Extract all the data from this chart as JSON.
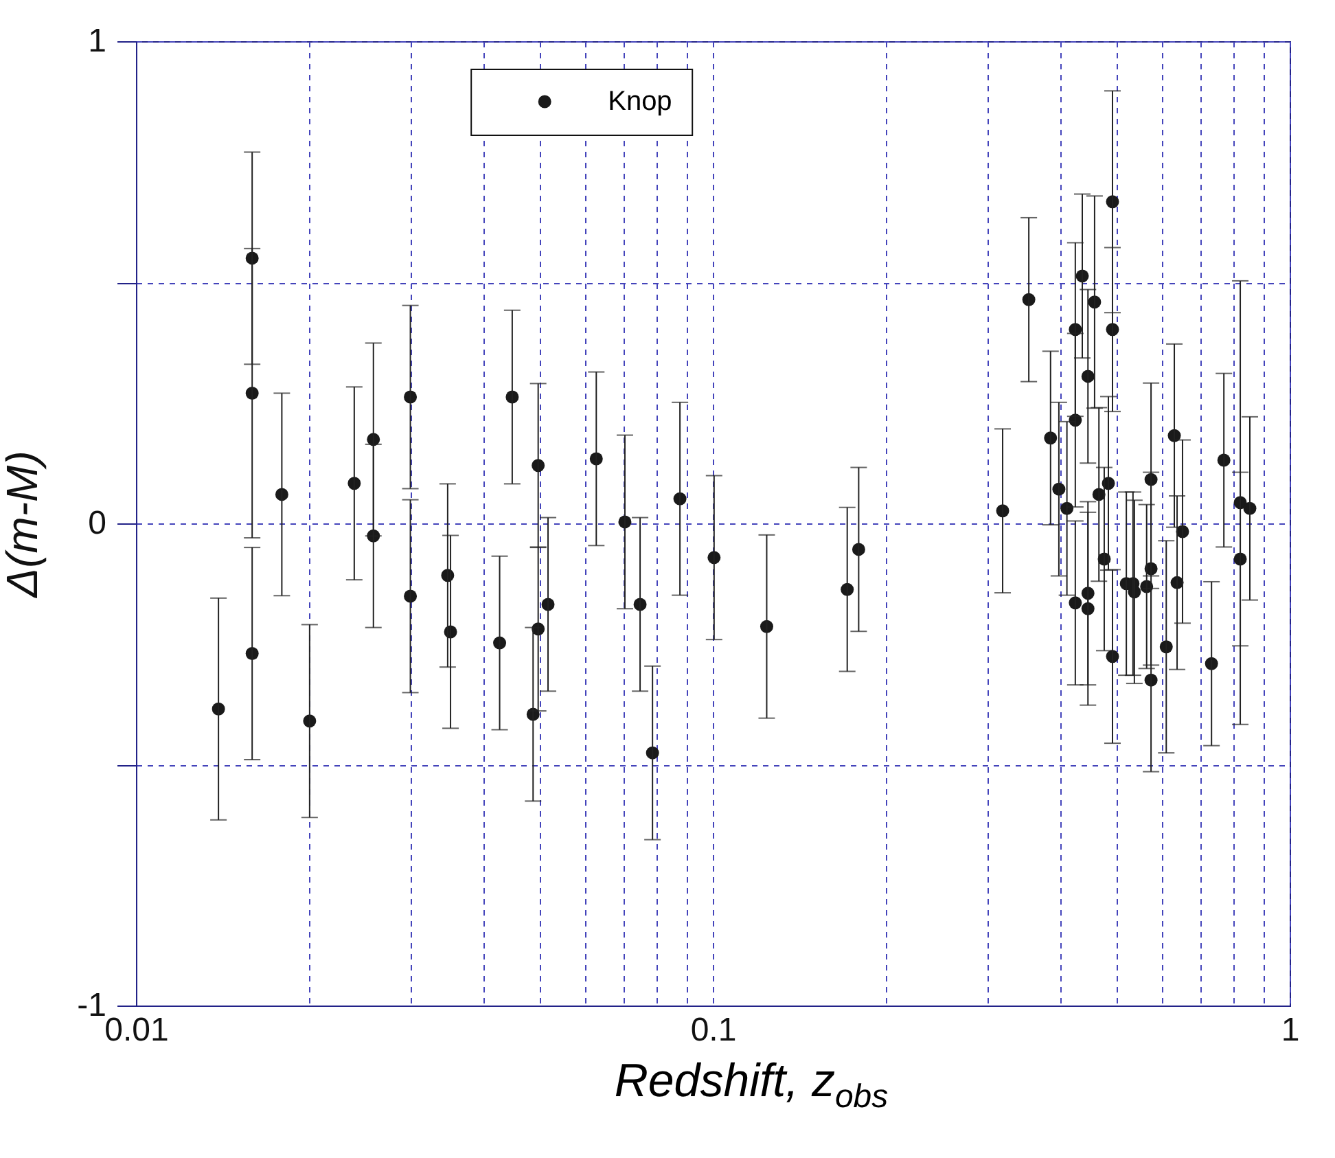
{
  "chart_data": {
    "type": "scatter",
    "xlabel": "Redshift, z$_{obs}$",
    "ylabel": "Δ(m-M)",
    "log": "x",
    "grid": true,
    "legend": "top",
    "marker": "circle",
    "xlim": [
      0.01,
      1
    ],
    "ylim": [
      -1,
      1
    ],
    "xticks": [
      0.01,
      {
        "value": 0.02,
        "label": null
      },
      {
        "value": 0.03,
        "label": null
      },
      {
        "value": 0.04,
        "label": null
      },
      {
        "value": 0.05,
        "label": null
      },
      {
        "value": 0.06,
        "label": null
      },
      {
        "value": 0.07,
        "label": null
      },
      {
        "value": 0.08,
        "label": null
      },
      {
        "value": 0.09,
        "label": null
      },
      0.1,
      {
        "value": 0.2,
        "label": null
      },
      {
        "value": 0.3,
        "label": null
      },
      {
        "value": 0.4,
        "label": null
      },
      {
        "value": 0.5,
        "label": null
      },
      {
        "value": 0.6,
        "label": null
      },
      {
        "value": 0.7,
        "label": null
      },
      {
        "value": 0.8,
        "label": null
      },
      {
        "value": 0.9,
        "label": null
      },
      1
    ],
    "yticks": [
      -1,
      {
        "value": -0.5,
        "label": null
      },
      0,
      {
        "value": 0.5,
        "label": null
      },
      1
    ],
    "series": [
      {
        "name": "Knop",
        "color": "#1a1a1a",
        "x": [
          0.0139,
          0.0159,
          0.0159,
          0.0159,
          0.0179,
          0.02,
          0.0239,
          0.0258,
          0.0258,
          0.0299,
          0.0299,
          0.0347,
          0.0351,
          0.0427,
          0.0449,
          0.0488,
          0.0498,
          0.0498,
          0.0518,
          0.0628,
          0.0704,
          0.0748,
          0.0786,
          0.0877,
          0.1005,
          0.124,
          0.171,
          0.179,
          0.318,
          0.353,
          0.385,
          0.398,
          0.411,
          0.425,
          0.425,
          0.425,
          0.437,
          0.447,
          0.447,
          0.447,
          0.459,
          0.467,
          0.477,
          0.485,
          0.493,
          0.493,
          0.493,
          0.521,
          0.535,
          0.538,
          0.565,
          0.575,
          0.575,
          0.575,
          0.611,
          0.631,
          0.638,
          0.652,
          0.732,
          0.769,
          0.821,
          0.821,
          0.853
        ],
        "values": [
          -0.385,
          0.55,
          0.27,
          -0.27,
          0.06,
          -0.41,
          0.083,
          0.174,
          -0.026,
          0.262,
          -0.151,
          -0.108,
          -0.225,
          -0.248,
          0.262,
          -0.396,
          0.12,
          -0.219,
          -0.168,
          0.134,
          0.003,
          -0.168,
          -0.476,
          0.051,
          -0.071,
          -0.214,
          -0.137,
          -0.054,
          0.026,
          0.464,
          0.177,
          0.071,
          0.031,
          0.402,
          0.214,
          -0.165,
          0.513,
          0.305,
          -0.145,
          -0.177,
          0.459,
          0.06,
          -0.074,
          0.083,
          -0.276,
          0.402,
          0.667,
          -0.125,
          -0.125,
          -0.142,
          -0.131,
          0.091,
          -0.094,
          -0.325,
          -0.256,
          0.182,
          -0.123,
          -0.017,
          -0.291,
          0.131,
          0.043,
          -0.074,
          0.031
        ],
        "errors": [
          0.23,
          0.22,
          0.3,
          0.22,
          0.21,
          0.2,
          0.2,
          0.2,
          0.19,
          0.19,
          0.2,
          0.19,
          0.2,
          0.18,
          0.18,
          0.18,
          0.17,
          0.17,
          0.18,
          0.18,
          0.18,
          0.18,
          0.18,
          0.2,
          0.17,
          0.19,
          0.17,
          0.17,
          0.17,
          0.17,
          0.18,
          0.18,
          0.18,
          0.18,
          0.18,
          0.17,
          0.17,
          0.18,
          0.19,
          0.2,
          0.22,
          0.18,
          0.19,
          0.18,
          0.18,
          0.17,
          0.23,
          0.19,
          0.19,
          0.19,
          0.17,
          0.2,
          0.2,
          0.19,
          0.22,
          0.19,
          0.18,
          0.19,
          0.17,
          0.18,
          0.46,
          0.18,
          0.19
        ]
      }
    ]
  }
}
